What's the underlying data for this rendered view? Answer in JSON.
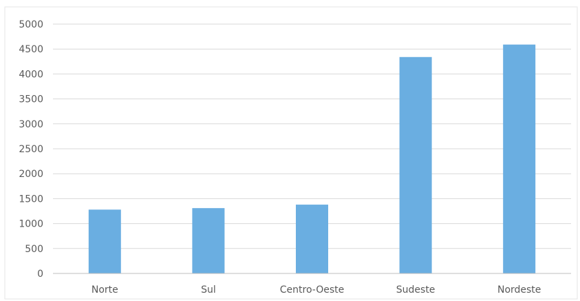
{
  "chart_data": {
    "type": "bar",
    "title": "",
    "xlabel": "",
    "ylabel": "",
    "categories": [
      "Norte",
      "Sul",
      "Centro-Oeste",
      "Sudeste",
      "Nordeste"
    ],
    "values": [
      1280,
      1310,
      1380,
      4340,
      4590
    ],
    "ylim": [
      0,
      5000
    ],
    "yticks": [
      0,
      500,
      1000,
      1500,
      2000,
      2500,
      3000,
      3500,
      4000,
      4500,
      5000
    ],
    "grid": true,
    "legend": "none",
    "bar_color": "#6aaee1"
  }
}
